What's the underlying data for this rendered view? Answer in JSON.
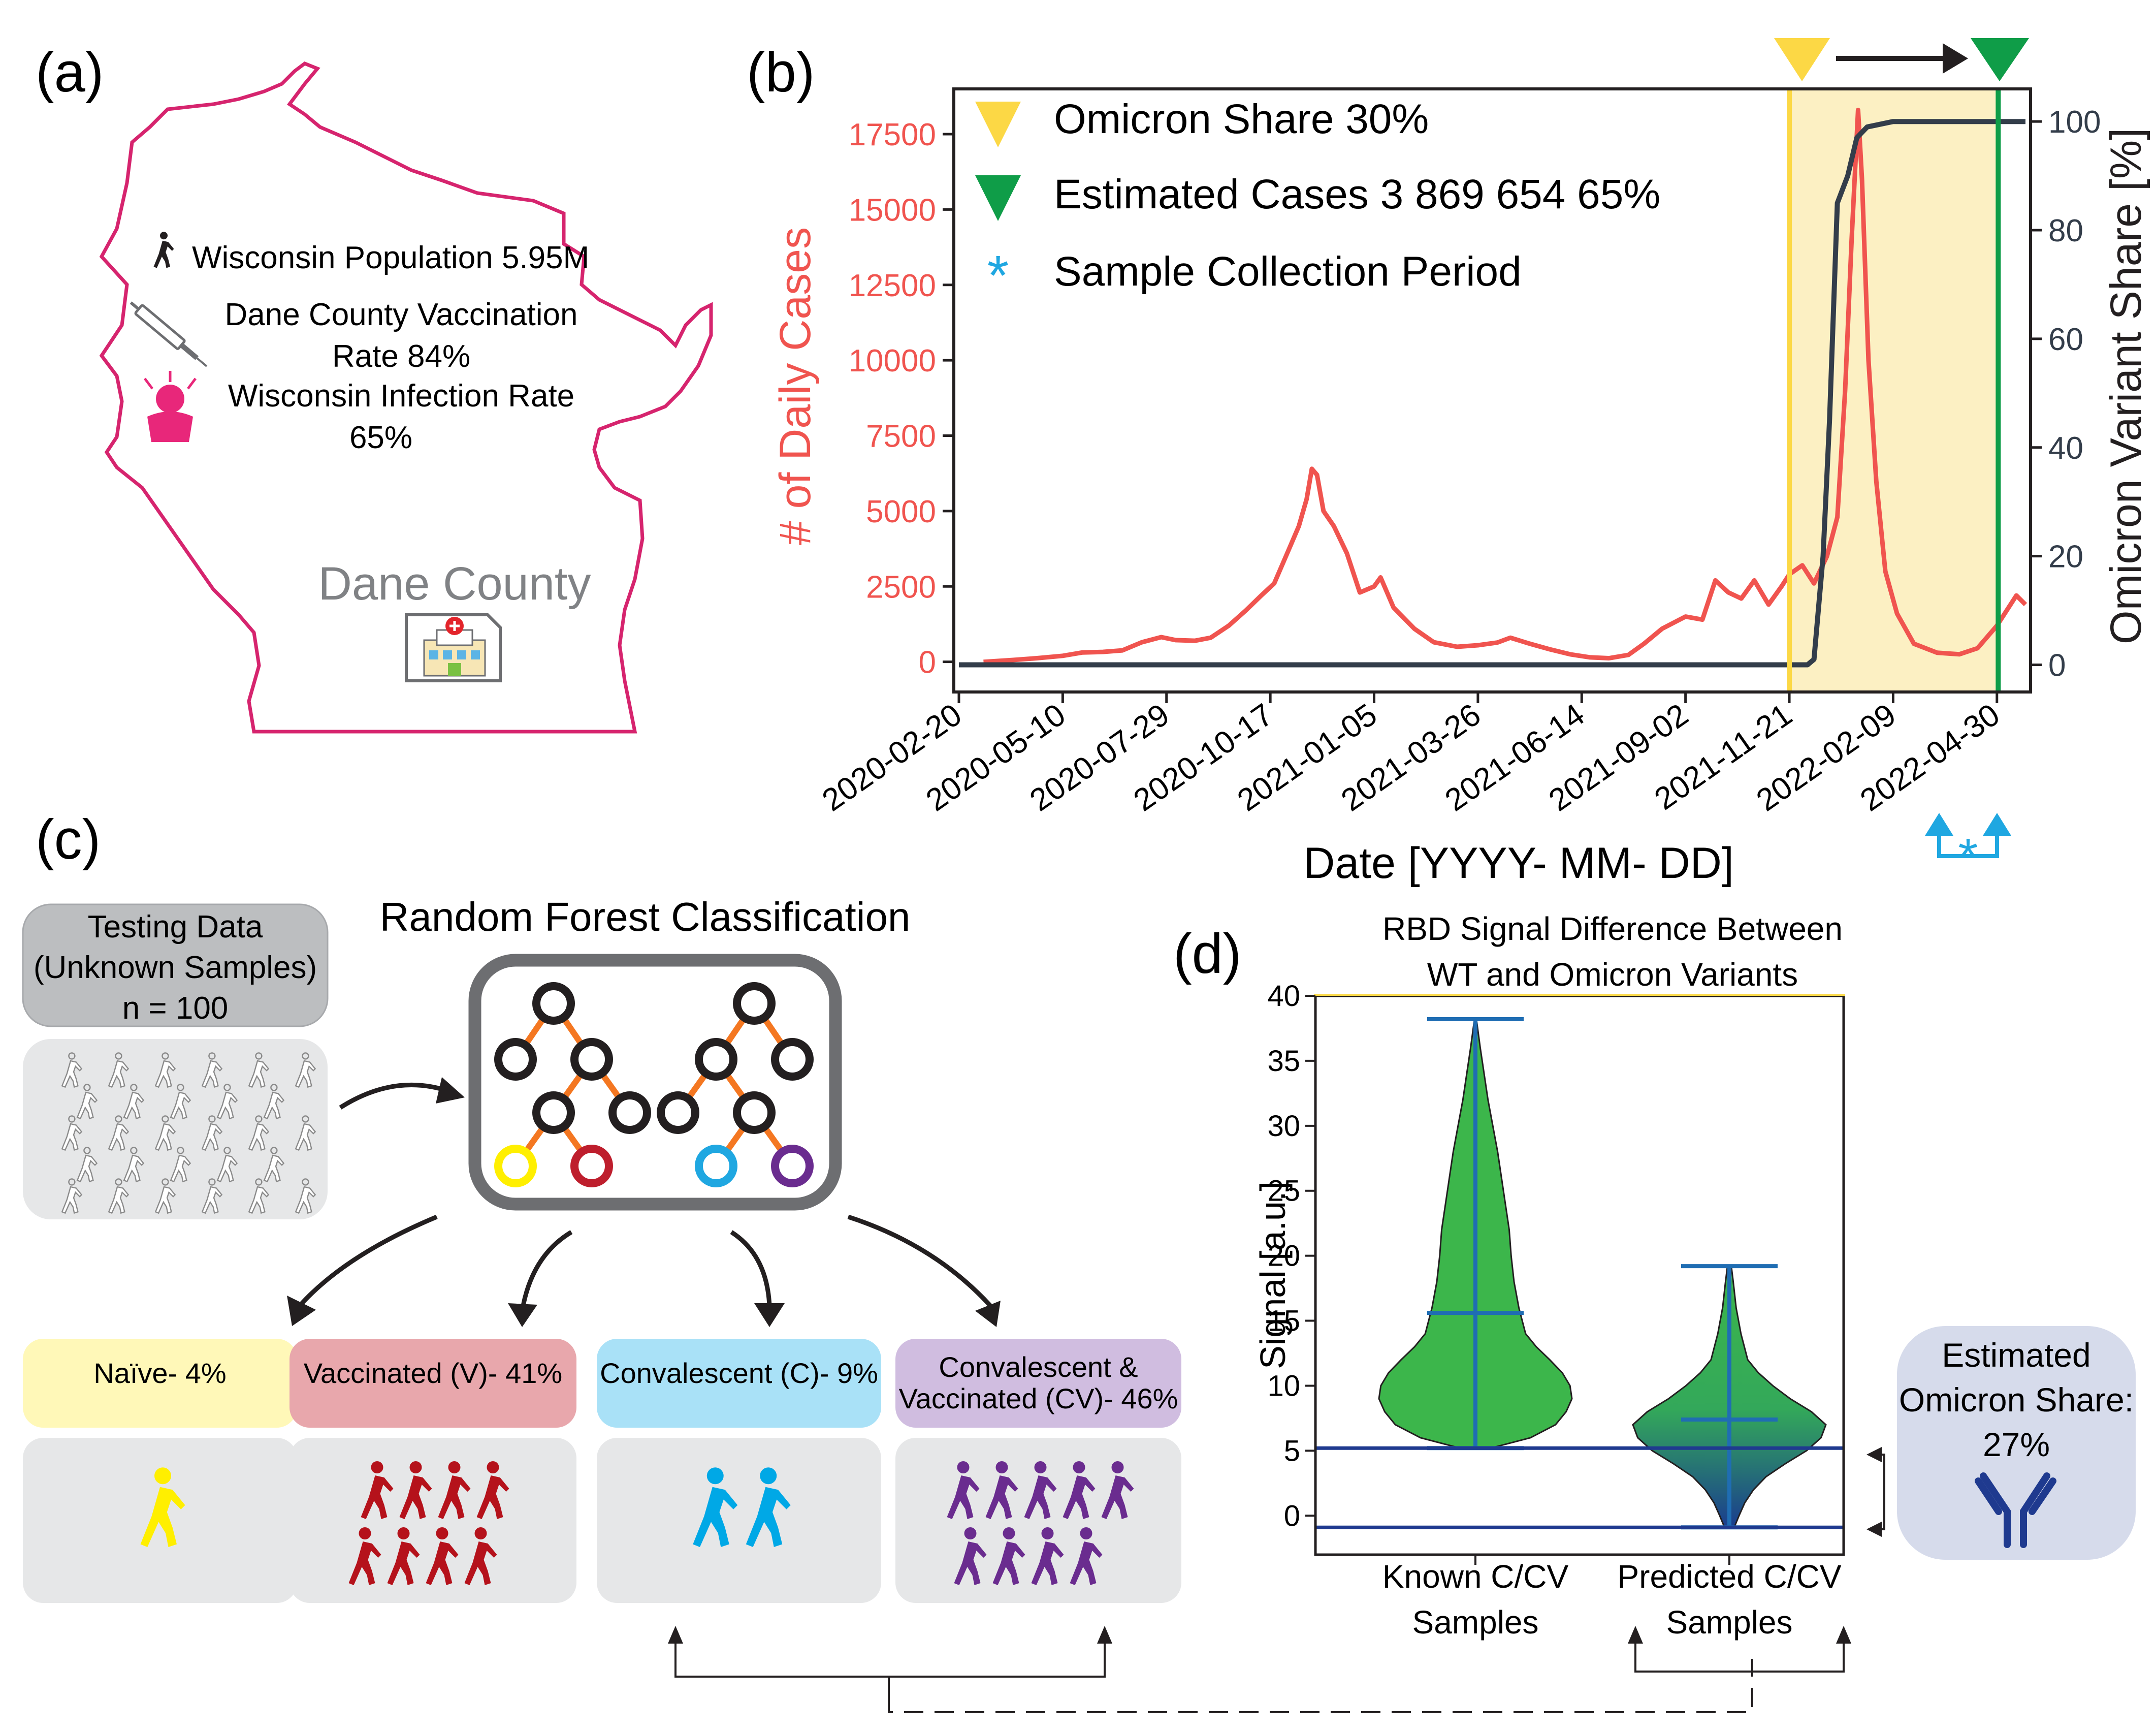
{
  "panel_labels": {
    "a": "(a)",
    "b": "(b)",
    "c": "(c)",
    "d": "(d)"
  },
  "map": {
    "population": "Wisconsin Population 5.95M",
    "vaccination_line1": "Dane County Vaccination",
    "vaccination_line2": "Rate 84%",
    "infection_line1": "Wisconsin Infection Rate",
    "infection_line2": "65%",
    "county": "Dane County",
    "icons": [
      "walking-person-icon",
      "syringe-icon",
      "sick-person-icon",
      "hospital-icon"
    ]
  },
  "classification": {
    "title": "Random Forest Classification",
    "testing_line1": "Testing Data",
    "testing_line2": "(Unknown Samples)",
    "testing_line3": "n = 100",
    "classes": [
      {
        "line1": "Naïve- 4%",
        "line2": "",
        "count": 1,
        "color": "#ffef00",
        "box": "#fff8b8"
      },
      {
        "line1": "Vaccinated (V)- 41%",
        "line2": "",
        "count": 8,
        "color": "#b5121b",
        "box": "#e8a7ac"
      },
      {
        "line1": "Convalescent (C)- 9%",
        "line2": "",
        "count": 2,
        "color": "#00a8e6",
        "box": "#a9e1f7"
      },
      {
        "line1": "Convalescent &",
        "line2": "Vaccinated (CV)- 46%",
        "count": 9,
        "color": "#6a2c8f",
        "box": "#d0bde0"
      }
    ]
  },
  "omicron_box": {
    "line1": "Estimated",
    "line2": "Omicron Share:",
    "line3": "27%",
    "icon": "antibody-icon"
  },
  "chart_data": [
    {
      "type": "line",
      "xlabel": "Date [YYYY- MM- DD]",
      "ylabel": "# of Daily Cases",
      "y2label": "Omicron Variant Share [%]",
      "x_ticks": [
        "2020-02-20",
        "2020-05-10",
        "2020-07-29",
        "2020-10-17",
        "2021-01-05",
        "2021-03-26",
        "2021-06-14",
        "2021-09-02",
        "2021-11-21",
        "2022-02-09",
        "2022-04-30"
      ],
      "ylim": [
        -1000,
        19000
      ],
      "y_ticks": [
        0,
        2500,
        5000,
        7500,
        10000,
        12500,
        15000,
        17500
      ],
      "y2lim": [
        -5,
        106
      ],
      "y2_ticks": [
        0,
        20,
        40,
        60,
        80,
        100
      ],
      "legend": [
        "Omicron Share 30%",
        "Estimated Cases 3 869 654  65%",
        "Sample Collection Period"
      ],
      "legend_placement": "top-left",
      "markers": {
        "omicron_30": "2021-11-21",
        "omicron_65": "2022-05-01"
      },
      "series": [
        {
          "name": "# of Daily Cases",
          "axis": "left",
          "color": "#f0544f",
          "points": [
            [
              "2020-03-10",
              0
            ],
            [
              "2020-04-01",
              60
            ],
            [
              "2020-04-20",
              120
            ],
            [
              "2020-05-10",
              200
            ],
            [
              "2020-05-25",
              310
            ],
            [
              "2020-06-10",
              330
            ],
            [
              "2020-06-25",
              380
            ],
            [
              "2020-07-10",
              650
            ],
            [
              "2020-07-25",
              820
            ],
            [
              "2020-08-05",
              720
            ],
            [
              "2020-08-20",
              700
            ],
            [
              "2020-09-01",
              800
            ],
            [
              "2020-09-15",
              1200
            ],
            [
              "2020-09-28",
              1700
            ],
            [
              "2020-10-10",
              2200
            ],
            [
              "2020-10-20",
              2600
            ],
            [
              "2020-10-30",
              3600
            ],
            [
              "2020-11-08",
              4500
            ],
            [
              "2020-11-14",
              5400
            ],
            [
              "2020-11-18",
              6400
            ],
            [
              "2020-11-22",
              6200
            ],
            [
              "2020-11-27",
              5000
            ],
            [
              "2020-12-05",
              4500
            ],
            [
              "2020-12-15",
              3600
            ],
            [
              "2020-12-25",
              2300
            ],
            [
              "2021-01-05",
              2500
            ],
            [
              "2021-01-10",
              2800
            ],
            [
              "2021-01-20",
              1800
            ],
            [
              "2021-02-05",
              1100
            ],
            [
              "2021-02-20",
              650
            ],
            [
              "2021-03-10",
              500
            ],
            [
              "2021-03-26",
              550
            ],
            [
              "2021-04-10",
              640
            ],
            [
              "2021-04-20",
              800
            ],
            [
              "2021-05-05",
              600
            ],
            [
              "2021-05-20",
              420
            ],
            [
              "2021-06-05",
              250
            ],
            [
              "2021-06-20",
              150
            ],
            [
              "2021-07-05",
              120
            ],
            [
              "2021-07-20",
              230
            ],
            [
              "2021-08-01",
              600
            ],
            [
              "2021-08-15",
              1100
            ],
            [
              "2021-09-02",
              1500
            ],
            [
              "2021-09-15",
              1400
            ],
            [
              "2021-09-25",
              2700
            ],
            [
              "2021-10-05",
              2300
            ],
            [
              "2021-10-15",
              2100
            ],
            [
              "2021-10-25",
              2700
            ],
            [
              "2021-11-05",
              1900
            ],
            [
              "2021-11-15",
              2500
            ],
            [
              "2021-11-21",
              2900
            ],
            [
              "2021-12-01",
              3200
            ],
            [
              "2021-12-10",
              2600
            ],
            [
              "2021-12-20",
              3500
            ],
            [
              "2021-12-28",
              4800
            ],
            [
              "2022-01-03",
              9000
            ],
            [
              "2022-01-08",
              14000
            ],
            [
              "2022-01-13",
              18300
            ],
            [
              "2022-01-16",
              16000
            ],
            [
              "2022-01-21",
              10000
            ],
            [
              "2022-01-27",
              6000
            ],
            [
              "2022-02-03",
              3000
            ],
            [
              "2022-02-12",
              1600
            ],
            [
              "2022-02-25",
              600
            ],
            [
              "2022-03-15",
              300
            ],
            [
              "2022-04-01",
              250
            ],
            [
              "2022-04-15",
              450
            ],
            [
              "2022-04-30",
              1200
            ],
            [
              "2022-05-15",
              2200
            ],
            [
              "2022-05-22",
              1900
            ]
          ]
        },
        {
          "name": "Omicron Variant Share [%]",
          "axis": "right",
          "color": "#333d4a",
          "points": [
            [
              "2020-02-20",
              0
            ],
            [
              "2021-12-05",
              0
            ],
            [
              "2021-12-10",
              1
            ],
            [
              "2021-12-17",
              20
            ],
            [
              "2021-12-22",
              45
            ],
            [
              "2021-12-28",
              85
            ],
            [
              "2022-01-05",
              90
            ],
            [
              "2022-01-12",
              97
            ],
            [
              "2022-01-20",
              99
            ],
            [
              "2022-02-09",
              100
            ],
            [
              "2022-05-22",
              100
            ]
          ]
        }
      ]
    },
    {
      "type": "violin",
      "title_line1": "RBD Signal Difference Between",
      "title_line2": "WT and Omicron Variants",
      "ylabel": "Signal [a.u.]",
      "ylim": [
        -3,
        40
      ],
      "y_ticks": [
        0,
        5,
        10,
        15,
        20,
        25,
        30,
        35,
        40
      ],
      "categories": [
        "Known C/CV Samples",
        "Predicted C/CV Samples"
      ],
      "category_lines": [
        [
          "Known C/CV",
          "Samples"
        ],
        [
          "Predicted C/CV",
          "Samples"
        ]
      ],
      "violins": [
        {
          "name": "Known C/CV Samples",
          "min": 5.2,
          "max": 38.2,
          "median": 15.6,
          "profile": [
            [
              5.2,
              0.16
            ],
            [
              6,
              0.57
            ],
            [
              7,
              0.83
            ],
            [
              8,
              0.94
            ],
            [
              9,
              1.0
            ],
            [
              10,
              0.98
            ],
            [
              11,
              0.9
            ],
            [
              12,
              0.77
            ],
            [
              13,
              0.63
            ],
            [
              14,
              0.52
            ],
            [
              16,
              0.45
            ],
            [
              18,
              0.4
            ],
            [
              20,
              0.37
            ],
            [
              22,
              0.35
            ],
            [
              24,
              0.31
            ],
            [
              26,
              0.27
            ],
            [
              28,
              0.23
            ],
            [
              30,
              0.18
            ],
            [
              32,
              0.13
            ],
            [
              34,
              0.09
            ],
            [
              36,
              0.05
            ],
            [
              38.2,
              0.01
            ]
          ]
        },
        {
          "name": "Predicted C/CV Samples",
          "min": -0.9,
          "max": 19.2,
          "median": 7.4,
          "profile": [
            [
              -0.9,
              0.05
            ],
            [
              0,
              0.1
            ],
            [
              1,
              0.16
            ],
            [
              2,
              0.25
            ],
            [
              3,
              0.38
            ],
            [
              4,
              0.58
            ],
            [
              5,
              0.8
            ],
            [
              6,
              0.95
            ],
            [
              7,
              1.0
            ],
            [
              8,
              0.85
            ],
            [
              9,
              0.63
            ],
            [
              10,
              0.45
            ],
            [
              11,
              0.3
            ],
            [
              12,
              0.19
            ],
            [
              14,
              0.12
            ],
            [
              16,
              0.07
            ],
            [
              18,
              0.04
            ],
            [
              19.2,
              0.02
            ]
          ]
        }
      ],
      "hlines": [
        5.2,
        -0.9
      ]
    }
  ]
}
